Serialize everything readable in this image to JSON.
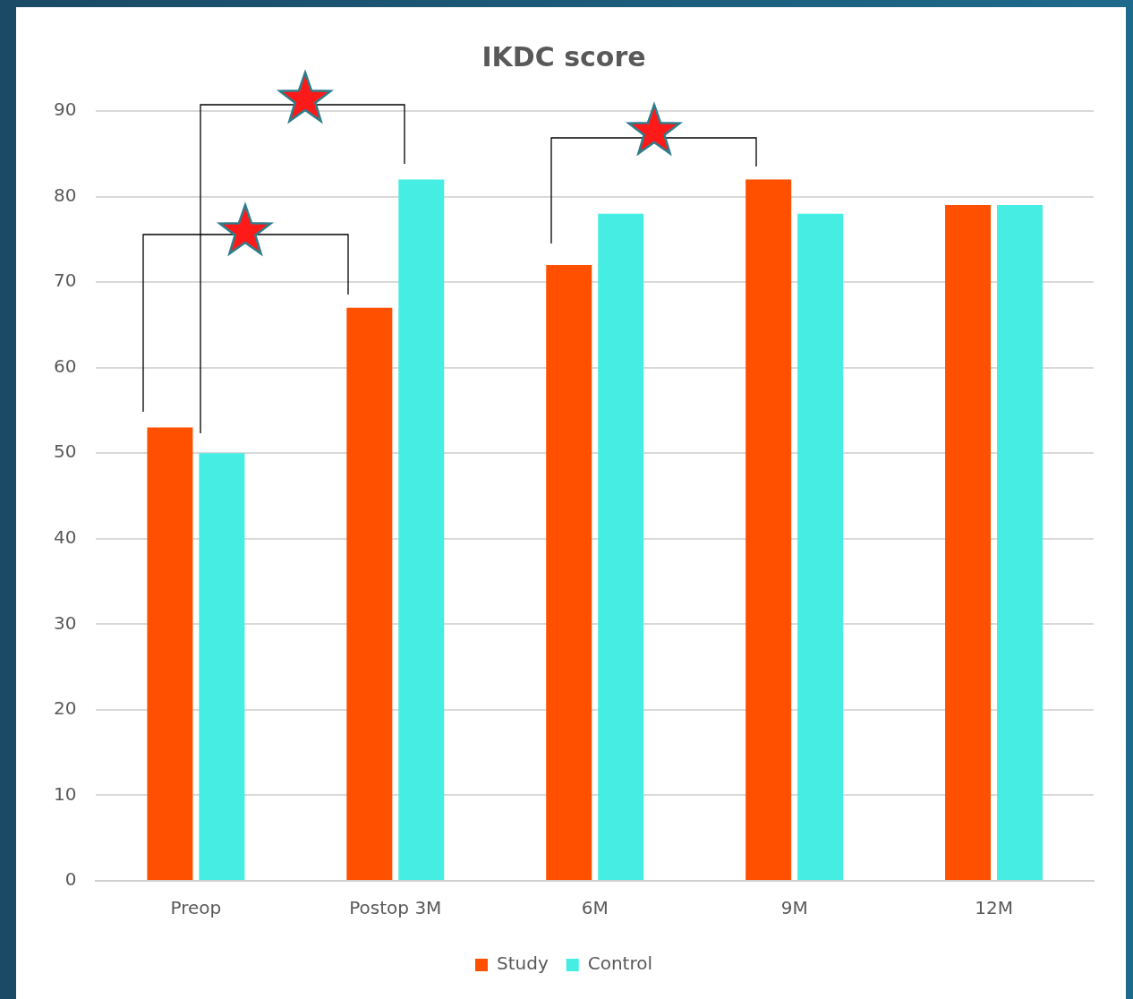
{
  "chart_data": {
    "type": "bar",
    "title": "IKDC score",
    "categories": [
      "Preop",
      "Postop 3M",
      "6M",
      "9M",
      "12M"
    ],
    "series": [
      {
        "name": "Study",
        "color": "#ff5000",
        "values": [
          53,
          67,
          72,
          82,
          79
        ]
      },
      {
        "name": "Control",
        "color": "#45ede2",
        "values": [
          50,
          82,
          78,
          78,
          79
        ]
      }
    ],
    "ylim": [
      0,
      90
    ],
    "yticks": [
      0,
      10,
      20,
      30,
      40,
      50,
      60,
      70,
      80,
      90
    ],
    "grid": "y",
    "legend": "bottom"
  }
}
